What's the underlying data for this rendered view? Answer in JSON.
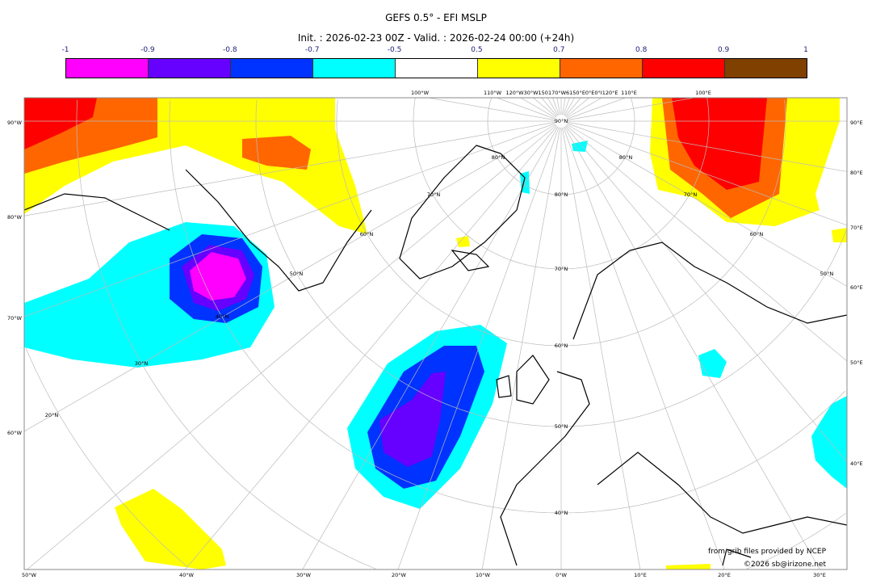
{
  "title": "GEFS 0.5° - EFI MSLP",
  "subtitle": "Init. : 2026-02-23 00Z - Valid. : 2026-02-24 00:00 (+24h)",
  "colorbar": {
    "ticks": [
      "-1",
      "-0.9",
      "-0.8",
      "-0.7",
      "-0.5",
      "0.5",
      "0.7",
      "0.8",
      "0.9",
      "1"
    ],
    "colors": [
      "#ff00ff",
      "#6600ff",
      "#0033ff",
      "#00ffff",
      "#ffffff",
      "#ffff00",
      "#ff6600",
      "#ff0000",
      "#804000"
    ]
  },
  "map": {
    "left_labels": [
      "90°W",
      "80°W",
      "70°W",
      "60°W"
    ],
    "bottom_labels": [
      "50°W",
      "40°W",
      "30°W",
      "20°W",
      "10°W",
      "0°W",
      "10°E",
      "20°E",
      "30°E"
    ],
    "right_labels": [
      "90°E",
      "80°E",
      "70°E",
      "60°E",
      "50°E",
      "40°E"
    ],
    "top_labels": [
      "100°W",
      "110°W",
      "120°W30°W150170°W6150°E0°E0°I120°E",
      "110°E",
      "100°E"
    ],
    "lat_labels_center": [
      "90°N",
      "80°N",
      "70°N",
      "60°N",
      "50°N",
      "40°N"
    ],
    "lat_labels_left": [
      "80°N",
      "70°N",
      "60°N",
      "50°N",
      "40°N",
      "30°N",
      "20°N"
    ],
    "lat_labels_right": [
      "80°N",
      "70°N",
      "60°N",
      "50°N"
    ],
    "credit_source": "from grib files provided by NCEP",
    "credit_copyright": "©2026 sb@irizone.net"
  }
}
